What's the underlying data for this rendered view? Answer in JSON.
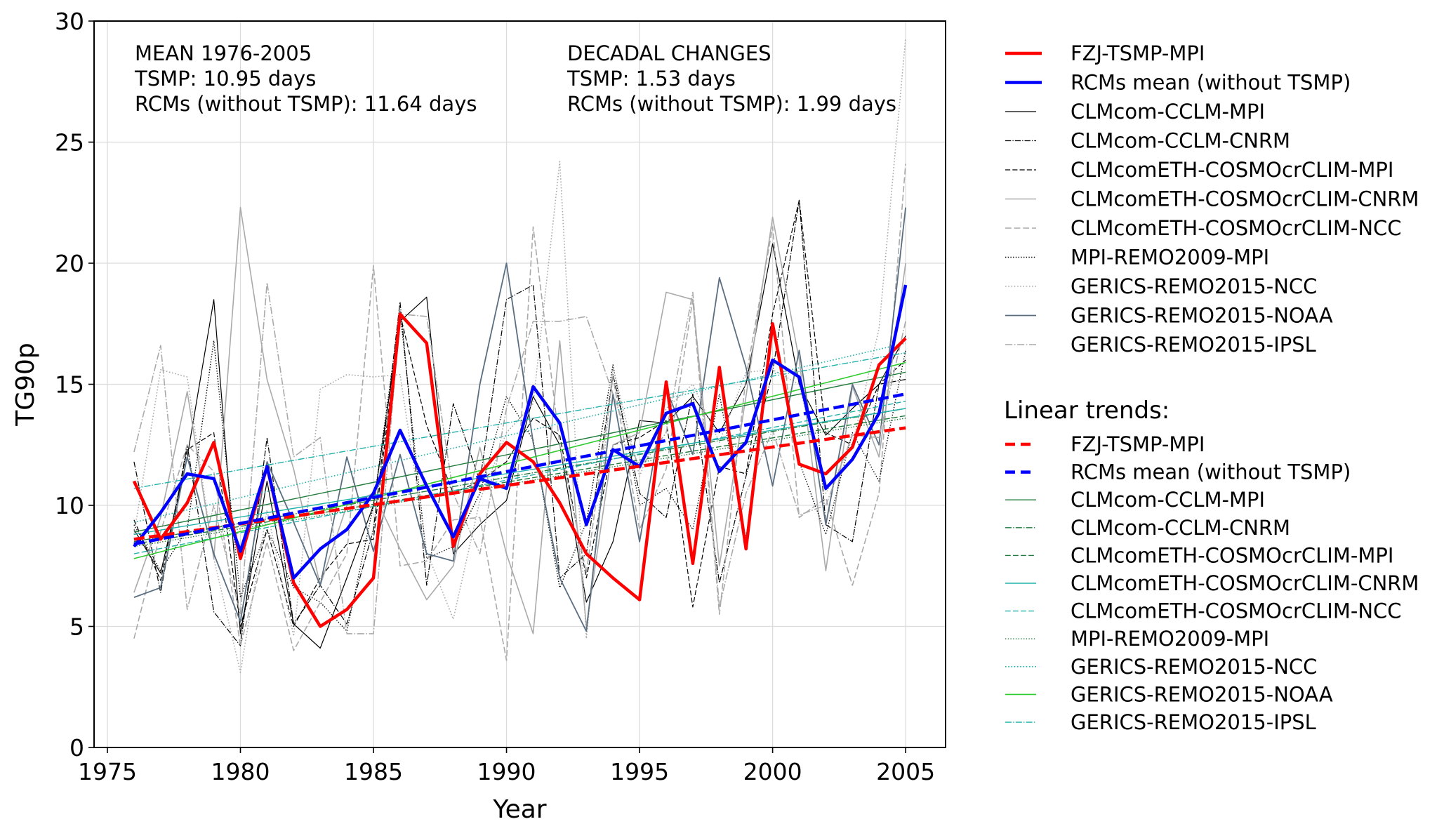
{
  "chart_data": {
    "type": "line",
    "title": "",
    "xlabel": "Year",
    "ylabel": "TG90p",
    "xlim": [
      1974.5,
      2006.5
    ],
    "ylim": [
      0,
      30
    ],
    "xticks": [
      1975,
      1980,
      1985,
      1990,
      1995,
      2000,
      2005
    ],
    "yticks": [
      0,
      5,
      10,
      15,
      20,
      25,
      30
    ],
    "grid": true,
    "x": [
      1976,
      1977,
      1978,
      1979,
      1980,
      1981,
      1982,
      1983,
      1984,
      1985,
      1986,
      1987,
      1988,
      1989,
      1990,
      1991,
      1992,
      1993,
      1994,
      1995,
      1996,
      1997,
      1998,
      1999,
      2000,
      2001,
      2002,
      2003,
      2004,
      2005
    ],
    "annotations": {
      "mean": [
        "MEAN 1976-2005",
        "TSMP: 10.95 days",
        "RCMs (without TSMP): 11.64 days"
      ],
      "decadal": [
        "DECADAL CHANGES",
        "TSMP: 1.53 days",
        "RCMs (without TSMP): 1.99 days"
      ]
    },
    "series": [
      {
        "name": "CLMcom-CCLM-MPI",
        "color": "#000000",
        "style": "solid",
        "width": 1.2,
        "values": [
          9.0,
          7.2,
          12.0,
          18.5,
          4.7,
          11.0,
          5.1,
          4.1,
          7.0,
          10.0,
          17.6,
          18.6,
          8.0,
          9.2,
          10.2,
          14.5,
          12.5,
          6.0,
          8.5,
          13.5,
          13.4,
          14.5,
          13.0,
          15.0,
          20.8,
          15.0,
          12.9,
          14.0,
          15.0,
          17.0
        ]
      },
      {
        "name": "CLMcom-CCLM-CNRM",
        "color": "#000000",
        "style": "dashdot",
        "width": 1.2,
        "values": [
          11.8,
          6.4,
          12.5,
          5.6,
          4.2,
          12.8,
          5.1,
          6.7,
          5.1,
          9.0,
          18.4,
          6.7,
          14.2,
          11.0,
          18.5,
          19.1,
          7.0,
          8.0,
          15.4,
          10.5,
          9.5,
          14.6,
          6.8,
          11.2,
          15.5,
          22.6,
          9.2,
          8.5,
          15.0,
          15.2
        ]
      },
      {
        "name": "CLMcomETH-COSMOcrCLIM-MPI",
        "color": "#000000",
        "style": "dashed",
        "width": 1.2,
        "values": [
          9.4,
          6.9,
          12.3,
          13.0,
          5.0,
          9.0,
          5.0,
          7.0,
          8.4,
          8.6,
          17.9,
          13.3,
          10.5,
          11.0,
          11.8,
          13.6,
          12.9,
          7.0,
          12.5,
          12.8,
          13.5,
          5.8,
          11.6,
          11.3,
          17.9,
          22.6,
          13.0,
          12.5,
          15.0,
          16.0
        ]
      },
      {
        "name": "CLMcomETH-COSMOcrCLIM-CNRM",
        "color": "#aaaaaa",
        "style": "solid",
        "width": 1.6,
        "values": [
          6.4,
          9.5,
          14.7,
          7.8,
          22.3,
          15.2,
          11.5,
          6.7,
          10.0,
          10.5,
          8.2,
          6.1,
          7.5,
          12.4,
          8.0,
          4.7,
          16.8,
          5.0,
          12.5,
          13.0,
          18.8,
          18.5,
          7.5,
          14.5,
          21.9,
          16.0,
          7.3,
          14.9,
          12.0,
          20.0
        ]
      },
      {
        "name": "CLMcomETH-COSMOcrCLIM-NCC",
        "color": "#aaaaaa",
        "style": "dashed",
        "width": 1.6,
        "values": [
          4.5,
          8.9,
          12.5,
          11.4,
          4.2,
          8.5,
          4.0,
          6.0,
          8.0,
          19.9,
          7.5,
          7.7,
          9.4,
          9.5,
          3.6,
          21.5,
          12.5,
          7.2,
          15.3,
          9.0,
          11.5,
          18.5,
          5.5,
          15.3,
          21.5,
          9.5,
          10.3,
          6.7,
          10.5,
          24.1
        ]
      },
      {
        "name": "MPI-REMO2009-MPI",
        "color": "#000000",
        "style": "dotted",
        "width": 1.4,
        "values": [
          9.2,
          7.3,
          9.0,
          16.8,
          6.2,
          9.0,
          6.6,
          6.0,
          4.8,
          10.0,
          18.0,
          7.8,
          8.3,
          10.5,
          14.5,
          12.7,
          6.6,
          9.3,
          15.8,
          10.0,
          10.7,
          9.0,
          14.6,
          8.6,
          17.5,
          11.8,
          8.8,
          13.0,
          11.0,
          16.4
        ]
      },
      {
        "name": "GERICS-REMO2015-NCC",
        "color": "#aaaaaa",
        "style": "dotted",
        "width": 1.6,
        "values": [
          8.8,
          15.6,
          15.3,
          7.8,
          3.1,
          9.8,
          4.6,
          14.8,
          15.4,
          15.3,
          15.4,
          8.1,
          5.3,
          10.2,
          13.0,
          14.2,
          24.2,
          4.5,
          15.7,
          11.2,
          14.0,
          15.0,
          12.6,
          15.5,
          15.6,
          15.0,
          10.5,
          12.5,
          17.3,
          29.3
        ]
      },
      {
        "name": "GERICS-REMO2015-NOAA",
        "color": "#5a6e82",
        "style": "solid",
        "width": 1.8,
        "values": [
          6.2,
          6.6,
          12.0,
          8.0,
          5.2,
          11.8,
          9.3,
          6.7,
          12.0,
          8.1,
          12.1,
          8.0,
          7.7,
          15.0,
          20.0,
          12.6,
          7.0,
          4.8,
          14.6,
          8.5,
          14.8,
          12.1,
          19.4,
          15.7,
          10.8,
          16.4,
          9.2,
          15.0,
          12.5,
          22.3
        ]
      },
      {
        "name": "GERICS-REMO2015-IPSL",
        "color": "#aaaaaa",
        "style": "dashdot",
        "width": 1.6,
        "values": [
          12.2,
          16.6,
          5.7,
          10.0,
          5.5,
          19.2,
          12.0,
          12.8,
          4.7,
          4.7,
          17.9,
          17.8,
          10.5,
          8.0,
          14.0,
          17.6,
          17.6,
          17.8,
          14.6,
          11.5,
          13.0,
          18.8,
          5.8,
          10.5,
          13.1,
          9.6,
          10.0,
          12.9,
          12.8,
          17.6
        ]
      },
      {
        "name": "FZJ-TSMP-MPI",
        "color": "#ff0000",
        "style": "solid",
        "width": 4.5,
        "values": [
          11.0,
          8.6,
          10.1,
          12.6,
          7.8,
          11.6,
          6.8,
          5.0,
          5.7,
          7.0,
          17.9,
          16.7,
          8.3,
          11.3,
          12.6,
          11.8,
          10.1,
          8.0,
          7.0,
          6.1,
          15.1,
          7.6,
          15.7,
          8.2,
          17.5,
          11.7,
          11.3,
          12.4,
          15.8,
          16.9
        ]
      },
      {
        "name": "RCMs mean (without TSMP)",
        "color": "#0000ff",
        "style": "solid",
        "width": 4.5,
        "values": [
          8.3,
          9.7,
          11.3,
          11.1,
          8.1,
          11.6,
          7.0,
          8.2,
          9.0,
          10.5,
          13.1,
          10.8,
          8.7,
          11.1,
          10.7,
          14.9,
          13.4,
          9.2,
          12.3,
          11.6,
          13.8,
          14.2,
          11.4,
          12.6,
          16.0,
          15.3,
          10.7,
          11.9,
          13.8,
          19.1
        ]
      }
    ],
    "trends": [
      {
        "name": "FZJ-TSMP-MPI",
        "color": "#ff0000",
        "style": "dashed",
        "width": 4.5,
        "start": 8.6,
        "end": 13.2
      },
      {
        "name": "RCMs mean (without TSMP)",
        "color": "#0000ff",
        "style": "dashed",
        "width": 4.5,
        "start": 8.4,
        "end": 14.6
      },
      {
        "name": "CLMcom-CCLM-MPI",
        "color": "#1e7b3a",
        "style": "solid",
        "width": 1.4,
        "start": 8.9,
        "end": 15.5
      },
      {
        "name": "CLMcom-CCLM-CNRM",
        "color": "#1e7b3a",
        "style": "dashdot",
        "width": 1.4,
        "start": 8.5,
        "end": 14.0
      },
      {
        "name": "CLMcomETH-COSMOcrCLIM-MPI",
        "color": "#1e7b3a",
        "style": "dashed",
        "width": 1.4,
        "start": 8.4,
        "end": 13.7
      },
      {
        "name": "CLMcomETH-COSMOcrCLIM-CNRM",
        "color": "#20b2aa",
        "style": "solid",
        "width": 1.4,
        "start": 8.8,
        "end": 14.0
      },
      {
        "name": "CLMcomETH-COSMOcrCLIM-NCC",
        "color": "#20b2aa",
        "style": "dashed",
        "width": 1.4,
        "start": 8.0,
        "end": 14.3
      },
      {
        "name": "MPI-REMO2009-MPI",
        "color": "#1e7b3a",
        "style": "dotted",
        "width": 1.4,
        "start": 8.3,
        "end": 13.6
      },
      {
        "name": "GERICS-REMO2015-NCC",
        "color": "#20b2aa",
        "style": "dotted",
        "width": 1.6,
        "start": 9.3,
        "end": 16.7
      },
      {
        "name": "GERICS-REMO2015-NOAA",
        "color": "#2ecc2e",
        "style": "solid",
        "width": 1.6,
        "start": 7.8,
        "end": 15.9
      },
      {
        "name": "GERICS-REMO2015-IPSL",
        "color": "#20b2aa",
        "style": "dashdot",
        "width": 1.4,
        "start": 10.7,
        "end": 16.3
      }
    ],
    "legend": {
      "placement": "right-outside",
      "trends_title": "Linear trends:"
    }
  }
}
